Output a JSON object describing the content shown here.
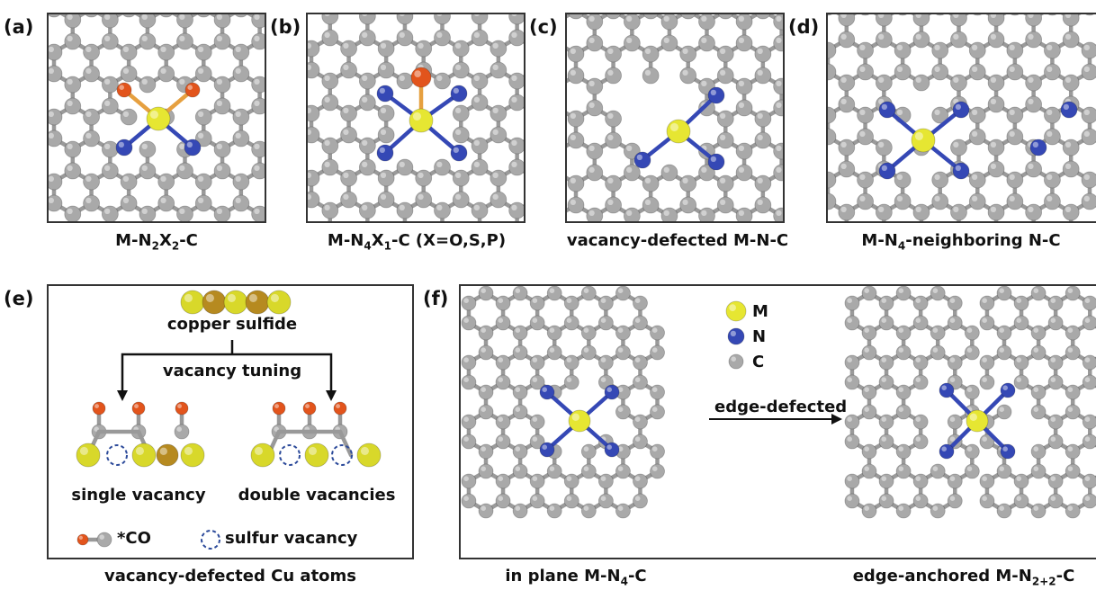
{
  "panels": {
    "a": {
      "label": "(a)",
      "caption_parts": [
        "M-N",
        "2",
        "X",
        "2",
        "-C"
      ]
    },
    "b": {
      "label": "(b)",
      "caption_parts": [
        "M-N",
        "4",
        "X",
        "1",
        "-C (X=O,S,P)"
      ]
    },
    "c": {
      "label": "(c)",
      "caption": "vacancy-defected M-N-C"
    },
    "d": {
      "label": "(d)",
      "caption_parts": [
        "M-N",
        "4",
        "-neighboring N-C"
      ]
    },
    "e": {
      "label": "(e)",
      "title": "copper sulfide",
      "arrow_label": "vacancy tuning",
      "left_label": "single vacancy",
      "right_label": "double vacancies",
      "legend_co": "*CO",
      "legend_vacancy": "sulfur vacancy",
      "caption": "vacancy-defected Cu atoms"
    },
    "f": {
      "label": "(f)",
      "arrow_label": "edge-defected",
      "legend": [
        {
          "symbol": "M",
          "color": "#e6e632"
        },
        {
          "symbol": "N",
          "color": "#3548b5"
        },
        {
          "symbol": "C",
          "color": "#a9a9a9"
        }
      ],
      "caption_left_parts": [
        "in plane M-N",
        "4",
        "-C"
      ],
      "caption_right_parts": [
        "edge-anchored M-N",
        "2+2",
        "-C"
      ]
    }
  },
  "colors": {
    "metal": "#e6e632",
    "nitrogen": "#3548b5",
    "carbon": "#a9a9a9",
    "oxygen": "#e2541c",
    "sulfur": "#d8d82a",
    "copper": "#b68a20"
  }
}
